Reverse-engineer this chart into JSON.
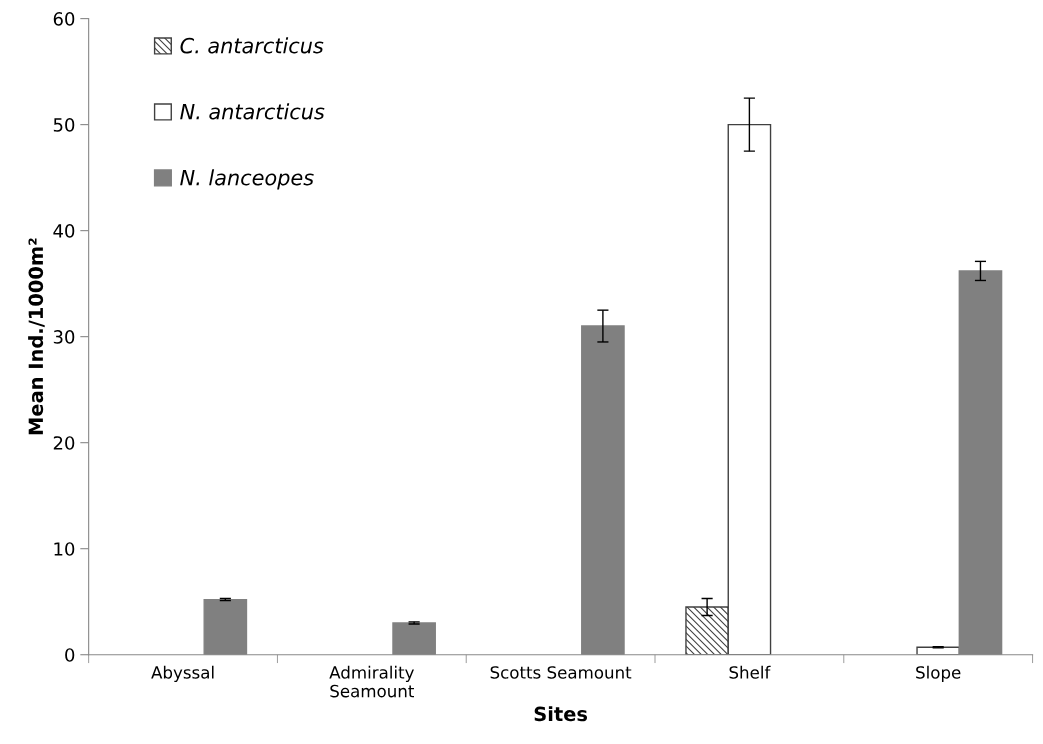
{
  "chart_data": {
    "type": "bar",
    "xlabel": "Sites",
    "ylabel": "Mean Ind./1000m²",
    "categories": [
      "Abyssal",
      "Admirality\nSeamount",
      "Scotts Seamount",
      "Shelf",
      "Slope"
    ],
    "series": [
      {
        "name": "C. antarcticus",
        "color": "#404040",
        "values": [
          null,
          null,
          null,
          4.5,
          null
        ],
        "errors": [
          null,
          null,
          null,
          0.8,
          null
        ]
      },
      {
        "name": "N. antarcticus",
        "color": "#ffffff",
        "values": [
          null,
          null,
          null,
          50.0,
          0.7
        ],
        "errors": [
          null,
          null,
          null,
          2.5,
          0.05
        ]
      },
      {
        "name": "N. lanceopes",
        "color": "#808080",
        "values": [
          5.2,
          3.0,
          31.0,
          null,
          36.2
        ],
        "errors": [
          0.1,
          0.1,
          1.5,
          null,
          0.9
        ]
      }
    ],
    "ylim": [
      0,
      60
    ],
    "yticks": [
      0,
      10,
      20,
      30,
      40,
      50,
      60
    ],
    "grid": false,
    "legend": "top left"
  }
}
